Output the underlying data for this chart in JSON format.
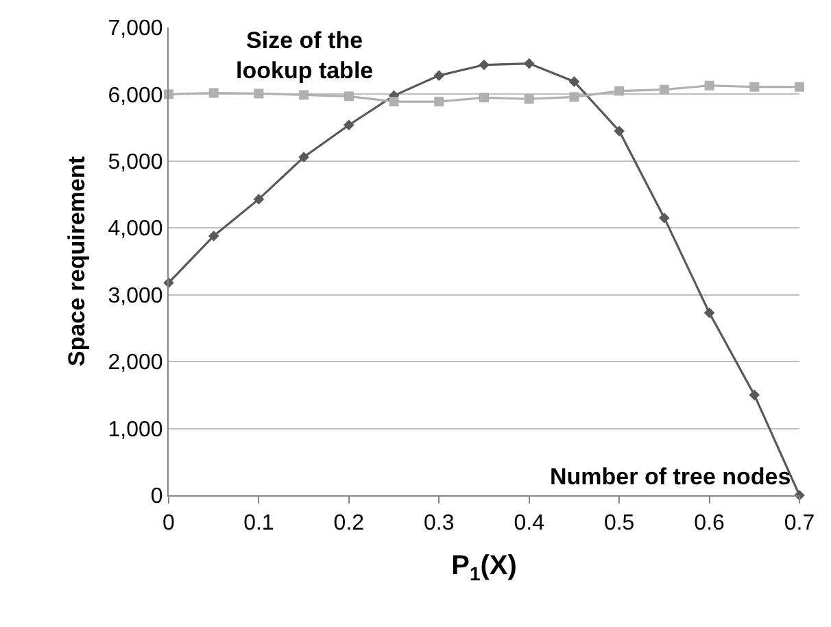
{
  "chart_data": {
    "type": "line",
    "xlabel": "P$_{1}$(X)",
    "ylabel": "Space requirement",
    "x": [
      0,
      0.05,
      0.1,
      0.15,
      0.2,
      0.25,
      0.3,
      0.35,
      0.4,
      0.45,
      0.5,
      0.55,
      0.6,
      0.65,
      0.7
    ],
    "series": [
      {
        "name": "Number of tree nodes",
        "color": "#595959",
        "marker": "diamond",
        "values": [
          3180,
          3880,
          4430,
          5060,
          5540,
          5980,
          6280,
          6440,
          6460,
          6190,
          5450,
          4150,
          2730,
          1500,
          0
        ]
      },
      {
        "name": "Size of the lookup table",
        "color": "#b0b0b0",
        "marker": "square",
        "values": [
          6000,
          6020,
          6010,
          5990,
          5970,
          5890,
          5890,
          5950,
          5930,
          5960,
          6050,
          6070,
          6130,
          6110,
          6110
        ]
      }
    ],
    "xlim": [
      0,
      0.7
    ],
    "xticks": [
      0,
      {
        "value": 0.1,
        "label": "0.1"
      },
      {
        "value": 0.2,
        "label": "0.2"
      },
      {
        "value": 0.3,
        "label": "0.3"
      },
      {
        "value": 0.4,
        "label": "0.4"
      },
      {
        "value": 0.5,
        "label": "0.5"
      },
      {
        "value": 0.6,
        "label": "0.6"
      },
      {
        "value": 0.7,
        "label": "0.7"
      }
    ],
    "ylim": [
      0,
      7000
    ],
    "yticks": [
      0,
      {
        "value": 1000,
        "label": "1,000"
      },
      {
        "value": 2000,
        "label": "2,000"
      },
      {
        "value": 3000,
        "label": "3,000"
      },
      {
        "value": 4000,
        "label": "4,000"
      },
      {
        "value": 5000,
        "label": "5,000"
      },
      {
        "value": 6000,
        "label": "6,000"
      },
      {
        "value": 7000,
        "label": "7,000"
      }
    ],
    "grid": "y",
    "legend": false,
    "line_style": "solid"
  }
}
